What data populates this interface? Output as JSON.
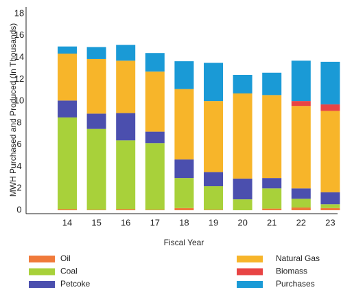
{
  "chart_data": {
    "type": "stacked_bar",
    "y_label": "MWH Purchased and Produced (In Thousands)",
    "x_label": "Fiscal Year",
    "categories": [
      "14",
      "15",
      "16",
      "17",
      "18",
      "19",
      "20",
      "21",
      "22",
      "23"
    ],
    "series": [
      {
        "name": "Oil",
        "color": "#f07a3a",
        "values": [
          0.1,
          0.05,
          0.1,
          0.05,
          0.2,
          0.05,
          0,
          0.15,
          0.25,
          0.2
        ]
      },
      {
        "name": "Coal",
        "color": "#a8d13a",
        "values": [
          8.4,
          7.4,
          6.3,
          6.1,
          2.75,
          2.15,
          1.0,
          1.85,
          0.8,
          0.35
        ]
      },
      {
        "name": "Petcoke",
        "color": "#4b4fae",
        "values": [
          1.55,
          1.4,
          2.5,
          1.05,
          1.7,
          1.3,
          1.9,
          0.95,
          0.95,
          1.1
        ]
      },
      {
        "name": "Natural Gas",
        "color": "#f7b52a",
        "values": [
          4.3,
          5.0,
          4.8,
          5.5,
          6.45,
          6.5,
          7.8,
          7.6,
          7.55,
          7.45
        ]
      },
      {
        "name": "Biomass",
        "color": "#e84444",
        "values": [
          0,
          0,
          0,
          0,
          0,
          0,
          0,
          0,
          0.45,
          0.6
        ]
      },
      {
        "name": "Purchases",
        "color": "#1a9ad6",
        "values": [
          0.65,
          1.1,
          1.45,
          1.7,
          2.55,
          3.5,
          1.7,
          2.05,
          3.7,
          3.9
        ]
      }
    ],
    "ylim": [
      0,
      18
    ],
    "yticks": [
      0,
      2,
      4,
      6,
      8,
      10,
      12,
      14,
      16,
      18
    ]
  }
}
